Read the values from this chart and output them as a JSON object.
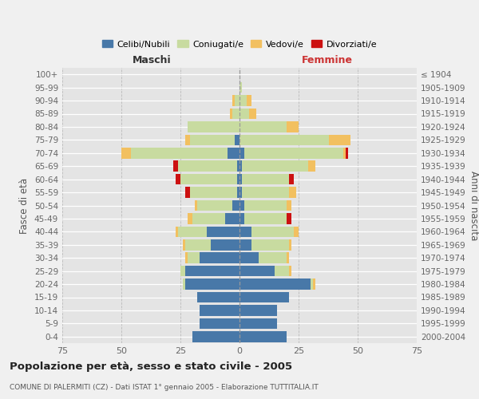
{
  "age_groups": [
    "0-4",
    "5-9",
    "10-14",
    "15-19",
    "20-24",
    "25-29",
    "30-34",
    "35-39",
    "40-44",
    "45-49",
    "50-54",
    "55-59",
    "60-64",
    "65-69",
    "70-74",
    "75-79",
    "80-84",
    "85-89",
    "90-94",
    "95-99",
    "100+"
  ],
  "birth_years": [
    "2000-2004",
    "1995-1999",
    "1990-1994",
    "1985-1989",
    "1980-1984",
    "1975-1979",
    "1970-1974",
    "1965-1969",
    "1960-1964",
    "1955-1959",
    "1950-1954",
    "1945-1949",
    "1940-1944",
    "1935-1939",
    "1930-1934",
    "1925-1929",
    "1920-1924",
    "1915-1919",
    "1910-1914",
    "1905-1909",
    "≤ 1904"
  ],
  "maschi": {
    "celibi": [
      20,
      17,
      17,
      18,
      23,
      23,
      17,
      12,
      14,
      6,
      3,
      1,
      1,
      1,
      5,
      2,
      0,
      0,
      0,
      0,
      0
    ],
    "coniugati": [
      0,
      0,
      0,
      0,
      1,
      2,
      5,
      11,
      12,
      14,
      15,
      20,
      24,
      25,
      41,
      19,
      22,
      3,
      2,
      0,
      0
    ],
    "vedovi": [
      0,
      0,
      0,
      0,
      0,
      0,
      1,
      1,
      1,
      2,
      1,
      0,
      0,
      0,
      4,
      2,
      0,
      1,
      1,
      0,
      0
    ],
    "divorziati": [
      0,
      0,
      0,
      0,
      0,
      0,
      0,
      0,
      0,
      0,
      0,
      2,
      2,
      2,
      0,
      0,
      0,
      0,
      0,
      0,
      0
    ]
  },
  "femmine": {
    "nubili": [
      20,
      16,
      16,
      21,
      30,
      15,
      8,
      5,
      5,
      2,
      2,
      1,
      1,
      1,
      2,
      0,
      0,
      0,
      0,
      0,
      0
    ],
    "coniugate": [
      0,
      0,
      0,
      0,
      1,
      6,
      12,
      16,
      18,
      18,
      18,
      20,
      20,
      28,
      42,
      38,
      20,
      4,
      3,
      1,
      0
    ],
    "vedove": [
      0,
      0,
      0,
      0,
      1,
      1,
      1,
      1,
      2,
      0,
      2,
      3,
      0,
      3,
      1,
      9,
      5,
      3,
      2,
      0,
      0
    ],
    "divorziate": [
      0,
      0,
      0,
      0,
      0,
      0,
      0,
      0,
      0,
      2,
      0,
      0,
      2,
      0,
      1,
      0,
      0,
      0,
      0,
      0,
      0
    ]
  },
  "colors": {
    "celibi": "#4878a8",
    "coniugati": "#c8dba0",
    "vedovi": "#f2c060",
    "divorziati": "#cc1111"
  },
  "xlim": 75,
  "title": "Popolazione per età, sesso e stato civile - 2005",
  "subtitle": "COMUNE DI PALERMITI (CZ) - Dati ISTAT 1° gennaio 2005 - Elaborazione TUTTITALIA.IT",
  "ylabel_left": "Fasce di età",
  "ylabel_right": "Anni di nascita",
  "label_maschi": "Maschi",
  "label_femmine": "Femmine",
  "legend_labels": [
    "Celibi/Nubili",
    "Coniugati/e",
    "Vedovi/e",
    "Divorziati/e"
  ],
  "bg_color": "#f0f0f0",
  "plot_bg_color": "#e4e4e4"
}
